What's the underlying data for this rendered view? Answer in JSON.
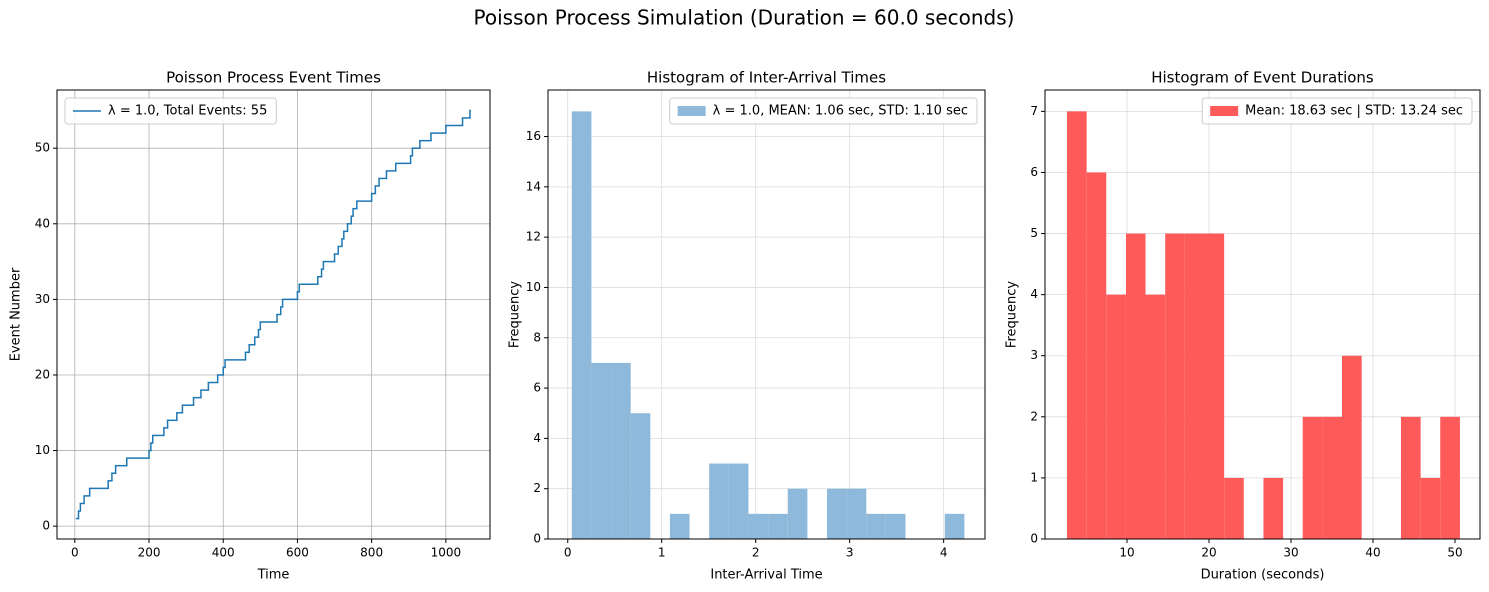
{
  "title": "Poisson Process Simulation (Duration = 60.0 seconds)",
  "chart_data": [
    {
      "type": "line",
      "step": "post",
      "title": "Poisson Process Event Times",
      "x_label": "Time",
      "y_label": "Event Number",
      "x": [
        5,
        10,
        15,
        25,
        40,
        90,
        100,
        110,
        140,
        200,
        205,
        210,
        240,
        250,
        275,
        290,
        320,
        340,
        360,
        385,
        400,
        405,
        460,
        470,
        485,
        495,
        500,
        545,
        555,
        560,
        600,
        605,
        655,
        665,
        670,
        700,
        710,
        720,
        725,
        735,
        745,
        750,
        760,
        800,
        810,
        820,
        840,
        865,
        905,
        910,
        930,
        960,
        1000,
        1045,
        1065
      ],
      "series": [
        {
          "name": "λ = 1.0, Total Events: 55",
          "color": "#1f77b4",
          "values": [
            1,
            2,
            3,
            4,
            5,
            6,
            7,
            8,
            9,
            10,
            11,
            12,
            13,
            14,
            15,
            16,
            17,
            18,
            19,
            20,
            21,
            22,
            23,
            24,
            25,
            26,
            27,
            28,
            29,
            30,
            31,
            32,
            33,
            34,
            35,
            36,
            37,
            38,
            39,
            40,
            41,
            42,
            43,
            44,
            45,
            46,
            47,
            48,
            49,
            50,
            51,
            52,
            53,
            54,
            55
          ]
        }
      ],
      "xlim": [
        -48,
        1119
      ],
      "ylim": [
        -1.7,
        57.7
      ],
      "xticks": [
        0,
        200,
        400,
        600,
        800,
        1000
      ],
      "yticks": [
        0,
        10,
        20,
        30,
        40,
        50
      ],
      "grid": true,
      "grid_color": "#b0b0b0",
      "legend": "upper left"
    },
    {
      "type": "histogram",
      "title": "Histogram of Inter-Arrival Times",
      "x_label": "Inter-Arrival Time",
      "y_label": "Frequency",
      "bins": [
        0.043,
        0.252,
        0.461,
        0.67,
        0.879,
        1.087,
        1.296,
        1.505,
        1.714,
        1.923,
        2.132,
        2.341,
        2.55,
        2.759,
        2.968,
        3.177,
        3.385,
        3.594,
        3.803,
        4.012,
        4.221
      ],
      "series": [
        {
          "name": "λ = 1.0, MEAN: 1.06 sec, STD: 1.10 sec",
          "color": "#8fb9da",
          "values": [
            17,
            7,
            7,
            5,
            0,
            1,
            0,
            3,
            3,
            1,
            1,
            2,
            0,
            2,
            2,
            1,
            1,
            0,
            0,
            1
          ]
        }
      ],
      "xlim": [
        -0.21,
        4.44
      ],
      "ylim": [
        0,
        17.85
      ],
      "xticks": [
        0,
        1,
        2,
        3,
        4
      ],
      "yticks": [
        0,
        2,
        4,
        6,
        8,
        10,
        12,
        14,
        16
      ],
      "grid": true,
      "grid_color": "#dcdcdc",
      "legend": "upper right"
    },
    {
      "type": "histogram",
      "title": "Histogram of Event Durations",
      "x_label": "Duration (seconds)",
      "y_label": "Frequency",
      "bins": [
        2.68,
        5.08,
        7.47,
        9.87,
        12.26,
        14.66,
        17.06,
        19.45,
        21.85,
        24.24,
        26.64,
        29.04,
        31.43,
        33.83,
        36.22,
        38.62,
        41.02,
        43.41,
        45.81,
        48.2,
        50.6
      ],
      "series": [
        {
          "name": "Mean: 18.63 sec | STD: 13.24 sec",
          "color": "#ff5a5a",
          "values": [
            7,
            6,
            4,
            5,
            4,
            5,
            5,
            5,
            1,
            0,
            1,
            0,
            2,
            2,
            3,
            0,
            0,
            2,
            1,
            2
          ]
        }
      ],
      "xlim": [
        0,
        53.05
      ],
      "ylim": [
        0,
        7.35
      ],
      "xticks": [
        10,
        20,
        30,
        40,
        50
      ],
      "yticks": [
        0,
        1,
        2,
        3,
        4,
        5,
        6,
        7
      ],
      "grid": true,
      "grid_color": "#dcdcdc",
      "legend": "upper right"
    }
  ]
}
